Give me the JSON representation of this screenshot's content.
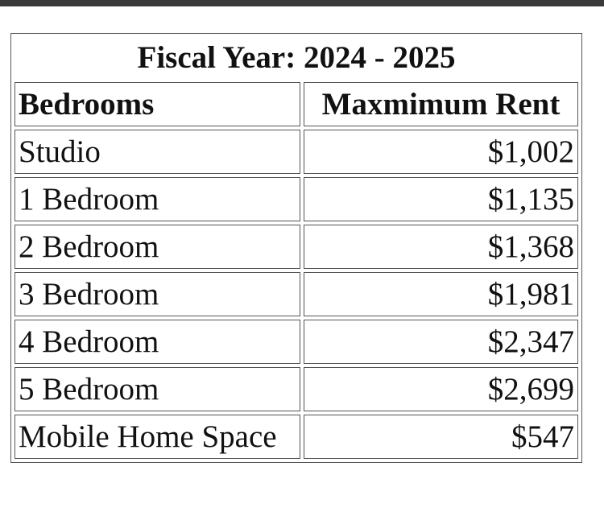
{
  "table": {
    "title": "Fiscal Year: 2024 - 2025",
    "headers": [
      "Bedrooms",
      "Maxmimum Rent"
    ],
    "rows": [
      {
        "bedrooms": "Studio",
        "rent": "$1,002"
      },
      {
        "bedrooms": "1 Bedroom",
        "rent": "$1,135"
      },
      {
        "bedrooms": "2 Bedroom",
        "rent": "$1,368"
      },
      {
        "bedrooms": "3 Bedroom",
        "rent": "$1,981"
      },
      {
        "bedrooms": "4 Bedroom",
        "rent": "$2,347"
      },
      {
        "bedrooms": "5 Bedroom",
        "rent": "$2,699"
      },
      {
        "bedrooms": "Mobile Home Space",
        "rent": "$547"
      }
    ]
  }
}
